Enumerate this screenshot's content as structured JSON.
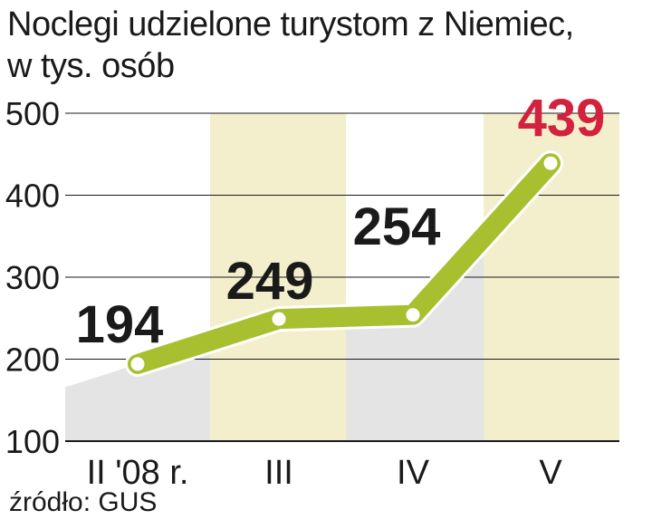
{
  "title": "Noclegi udzielone turystom z Niemiec,",
  "subtitle": "w tys. osób",
  "source": "źródło: GUS",
  "colors": {
    "line": "#a8bf2f",
    "line_edge": "#ffffff",
    "band_light": "#f3efcc",
    "band_gray": "#e4e4e4",
    "grid": "#1a1a1a",
    "text": "#1a1a1a",
    "highlight": "#d4213d"
  },
  "chart_data": {
    "type": "line",
    "title": "Noclegi udzielone turystom z Niemiec, w tys. osób",
    "categories": [
      "II '08 r.",
      "III",
      "IV",
      "V"
    ],
    "values": [
      194,
      249,
      254,
      439
    ],
    "data_labels": [
      "194",
      "249",
      "254",
      "439"
    ],
    "highlight_index": 3,
    "ylim": [
      100,
      500
    ],
    "yticks": [
      100,
      200,
      300,
      400,
      500
    ],
    "ytick_labels": [
      "100",
      "200",
      "300",
      "400",
      "500"
    ],
    "grid": true,
    "legend": "none"
  }
}
